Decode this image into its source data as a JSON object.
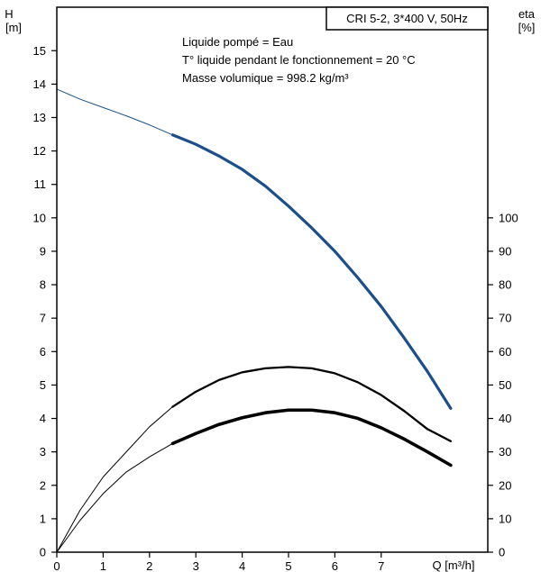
{
  "chart_data": {
    "type": "line",
    "title": "CRI 5-2, 3*400 V, 50Hz",
    "annotations": [
      "Liquide pompé = Eau",
      "T° liquide pendant le fonctionnement = 20 °C",
      "Masse volumique = 998.2 kg/m³"
    ],
    "x_axis": {
      "label": "Q [m³/h]",
      "range": [
        0,
        9.3
      ],
      "ticks": [
        0,
        1,
        2,
        3,
        4,
        5,
        6,
        7
      ]
    },
    "y_axis_left": {
      "label_name": "H",
      "label_unit": "[m]",
      "range": [
        0,
        16.3
      ],
      "ticks": [
        0,
        1,
        2,
        3,
        4,
        5,
        6,
        7,
        8,
        9,
        10,
        11,
        12,
        13,
        14,
        15
      ]
    },
    "y_axis_right": {
      "label_name": "eta",
      "label_unit": "[%]",
      "range": [
        0,
        163
      ],
      "ticks": [
        0,
        10,
        20,
        30,
        40,
        50,
        60,
        70,
        80,
        90,
        100
      ]
    },
    "grid": false,
    "series": [
      {
        "axis": "left",
        "color": "#1a4f8a",
        "thin_until_x": 2.5,
        "points": [
          [
            0,
            13.85
          ],
          [
            0.5,
            13.55
          ],
          [
            1.0,
            13.3
          ],
          [
            1.5,
            13.05
          ],
          [
            2.0,
            12.78
          ],
          [
            2.5,
            12.48
          ],
          [
            3.0,
            12.2
          ],
          [
            3.5,
            11.85
          ],
          [
            4.0,
            11.45
          ],
          [
            4.5,
            10.95
          ],
          [
            5.0,
            10.35
          ],
          [
            5.5,
            9.7
          ],
          [
            6.0,
            9.0
          ],
          [
            6.5,
            8.2
          ],
          [
            7.0,
            7.35
          ],
          [
            7.5,
            6.4
          ],
          [
            8.0,
            5.4
          ],
          [
            8.5,
            4.3
          ]
        ]
      },
      {
        "axis": "right",
        "color": "#000000",
        "thin_until_x": 2.5,
        "points": [
          [
            0,
            0
          ],
          [
            0.5,
            12.5
          ],
          [
            1.0,
            22.5
          ],
          [
            1.5,
            30.0
          ],
          [
            2.0,
            37.5
          ],
          [
            2.5,
            43.5
          ],
          [
            3.0,
            48.0
          ],
          [
            3.5,
            51.5
          ],
          [
            4.0,
            53.8
          ],
          [
            4.5,
            55.0
          ],
          [
            5.0,
            55.4
          ],
          [
            5.5,
            55.0
          ],
          [
            6.0,
            53.5
          ],
          [
            6.5,
            50.8
          ],
          [
            7.0,
            47.0
          ],
          [
            7.5,
            42.2
          ],
          [
            8.0,
            36.8
          ],
          [
            8.5,
            33.2
          ]
        ]
      },
      {
        "axis": "left",
        "color": "#000000",
        "thin_until_x": 2.5,
        "points": [
          [
            0,
            0
          ],
          [
            0.5,
            0.95
          ],
          [
            1.0,
            1.75
          ],
          [
            1.5,
            2.4
          ],
          [
            2.0,
            2.85
          ],
          [
            2.5,
            3.25
          ],
          [
            3.0,
            3.55
          ],
          [
            3.5,
            3.82
          ],
          [
            4.0,
            4.02
          ],
          [
            4.5,
            4.17
          ],
          [
            5.0,
            4.25
          ],
          [
            5.5,
            4.25
          ],
          [
            6.0,
            4.17
          ],
          [
            6.5,
            4.0
          ],
          [
            7.0,
            3.72
          ],
          [
            7.5,
            3.38
          ],
          [
            8.0,
            3.0
          ],
          [
            8.5,
            2.6
          ]
        ]
      }
    ]
  }
}
